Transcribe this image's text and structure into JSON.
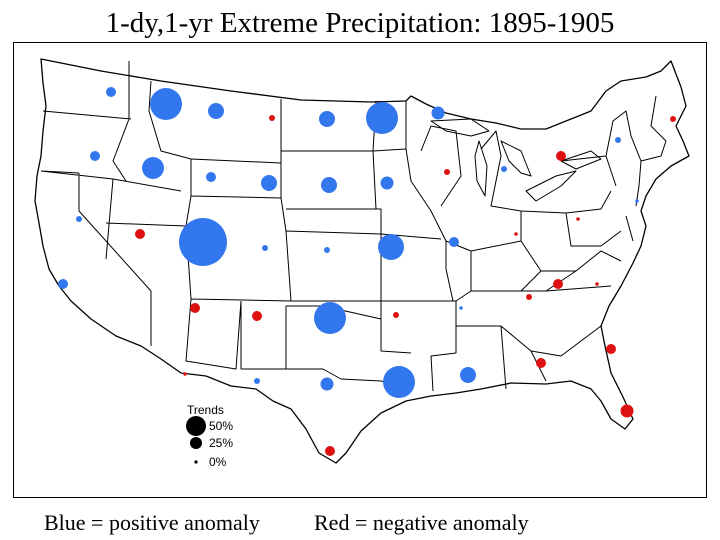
{
  "title": "1-dy,1-yr Extreme Precipitation:  1895-1905",
  "legend": {
    "title": "Trends",
    "entries": [
      {
        "label": "50%",
        "value": 50
      },
      {
        "label": "25%",
        "value": 25
      },
      {
        "label": "0%",
        "value": 0
      }
    ]
  },
  "captions": {
    "blue": "Blue = positive anomaly",
    "red": "Red = negative anomaly"
  },
  "colors": {
    "positive": "#3377ee",
    "negative": "#dd1111",
    "legend_marker": "#000000",
    "boundary": "#000000"
  },
  "stations": [
    {
      "region": "western WA",
      "anomaly": "positive",
      "trend_pct": 3
    },
    {
      "region": "northern ID",
      "anomaly": "positive",
      "trend_pct": 35
    },
    {
      "region": "western MT",
      "anomaly": "positive",
      "trend_pct": 10
    },
    {
      "region": "eastern MT",
      "anomaly": "negative",
      "trend_pct": 2
    },
    {
      "region": "western ND",
      "anomaly": "positive",
      "trend_pct": 10
    },
    {
      "region": "eastern ND",
      "anomaly": "positive",
      "trend_pct": 38
    },
    {
      "region": "northern MN",
      "anomaly": "positive",
      "trend_pct": 5
    },
    {
      "region": "northern ME",
      "anomaly": "negative",
      "trend_pct": 1
    },
    {
      "region": "OR",
      "anomaly": "positive",
      "trend_pct": 3
    },
    {
      "region": "southern ID",
      "anomaly": "positive",
      "trend_pct": 18
    },
    {
      "region": "western WY",
      "anomaly": "positive",
      "trend_pct": 4
    },
    {
      "region": "eastern WY",
      "anomaly": "positive",
      "trend_pct": 8
    },
    {
      "region": "western SD",
      "anomaly": "positive",
      "trend_pct": 8
    },
    {
      "region": "eastern SD",
      "anomaly": "positive",
      "trend_pct": 5
    },
    {
      "region": "WI",
      "anomaly": "negative",
      "trend_pct": 1
    },
    {
      "region": "MI",
      "anomaly": "positive",
      "trend_pct": 2
    },
    {
      "region": "Upper MI",
      "anomaly": "positive",
      "trend_pct": 1
    },
    {
      "region": "NY",
      "anomaly": "negative",
      "trend_pct": 3
    },
    {
      "region": "NH",
      "anomaly": "positive",
      "trend_pct": 1
    },
    {
      "region": "northern CA",
      "anomaly": "negative",
      "trend_pct": 3
    },
    {
      "region": "NV",
      "anomaly": "positive",
      "trend_pct": 80
    },
    {
      "region": "northern UT",
      "anomaly": "positive",
      "trend_pct": 2
    },
    {
      "region": "CO",
      "anomaly": "positive",
      "trend_pct": 1
    },
    {
      "region": "NE",
      "anomaly": "positive",
      "trend_pct": 25
    },
    {
      "region": "IA",
      "anomaly": "positive",
      "trend_pct": 4
    },
    {
      "region": "IL",
      "anomaly": "negative",
      "trend_pct": 0
    },
    {
      "region": "IN",
      "anomaly": "negative",
      "trend_pct": 0
    },
    {
      "region": "PA",
      "anomaly": "positive",
      "trend_pct": 0
    },
    {
      "region": "NJ",
      "anomaly": "positive",
      "trend_pct": 4
    },
    {
      "region": "southern CA",
      "anomaly": "negative",
      "trend_pct": 3
    },
    {
      "region": "southern UT",
      "anomaly": "negative",
      "trend_pct": 4
    },
    {
      "region": "eastern CO",
      "anomaly": "positive",
      "trend_pct": 30
    },
    {
      "region": "KS",
      "anomaly": "negative",
      "trend_pct": 1
    },
    {
      "region": "OK",
      "anomaly": "positive",
      "trend_pct": 0
    },
    {
      "region": "MO",
      "anomaly": "negative",
      "trend_pct": 1
    },
    {
      "region": "TN",
      "anomaly": "negative",
      "trend_pct": 3
    },
    {
      "region": "KY",
      "anomaly": "negative",
      "trend_pct": 0
    },
    {
      "region": "VA",
      "anomaly": "negative",
      "trend_pct": 0
    },
    {
      "region": "NC",
      "anomaly": "positive",
      "trend_pct": 1
    },
    {
      "region": "AZ",
      "anomaly": "positive",
      "trend_pct": 6
    },
    {
      "region": "NM",
      "anomaly": "positive",
      "trend_pct": 30
    },
    {
      "region": "west TX",
      "anomaly": "positive",
      "trend_pct": 8
    },
    {
      "region": "central TX",
      "anomaly": "negative",
      "trend_pct": 3
    },
    {
      "region": "LA",
      "anomaly": "negative",
      "trend_pct": 4
    },
    {
      "region": "GA",
      "anomaly": "negative",
      "trend_pct": 3
    },
    {
      "region": "SC",
      "anomaly": "negative",
      "trend_pct": 5
    },
    {
      "region": "south TX",
      "anomaly": "positive",
      "trend_pct": 0
    },
    {
      "region": "FL",
      "anomaly": "negative",
      "trend_pct": 1
    }
  ]
}
